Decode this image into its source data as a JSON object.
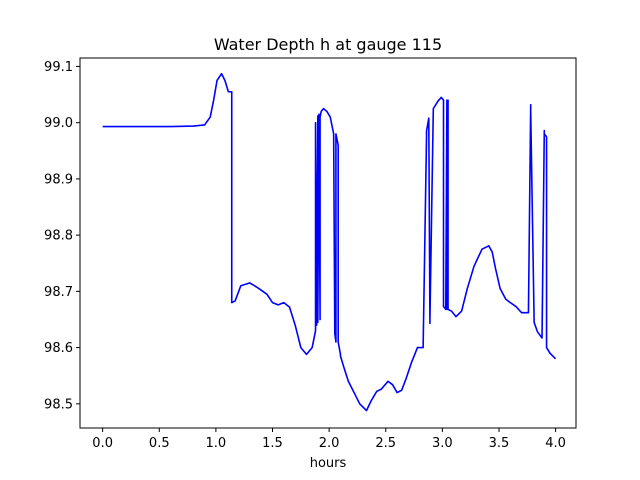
{
  "chart_data": {
    "type": "line",
    "title": "Water Depth h at gauge 115",
    "xlabel": "hours",
    "ylabel": "",
    "xlim": [
      -0.2,
      4.18
    ],
    "ylim": [
      98.457,
      99.115
    ],
    "xticks": [
      0.0,
      0.5,
      1.0,
      1.5,
      2.0,
      2.5,
      3.0,
      3.5,
      4.0
    ],
    "xtick_labels": [
      "0.0",
      "0.5",
      "1.0",
      "1.5",
      "2.0",
      "2.5",
      "3.0",
      "3.5",
      "4.0"
    ],
    "yticks": [
      98.5,
      98.6,
      98.7,
      98.8,
      98.9,
      99.0,
      99.1
    ],
    "ytick_labels": [
      "98.5",
      "98.6",
      "98.7",
      "98.8",
      "98.9",
      "99.0",
      "99.1"
    ],
    "grid": false,
    "series": [
      {
        "color": "#0000ff",
        "x": [
          0.0,
          0.3,
          0.6,
          0.8,
          0.9,
          0.95,
          0.98,
          1.01,
          1.05,
          1.08,
          1.11,
          1.14,
          1.14,
          1.17,
          1.22,
          1.3,
          1.38,
          1.45,
          1.5,
          1.55,
          1.6,
          1.65,
          1.7,
          1.75,
          1.8,
          1.85,
          1.88,
          1.88,
          1.89,
          1.9,
          1.9,
          1.91,
          1.92,
          1.92,
          1.93,
          1.95,
          1.98,
          2.01,
          2.04,
          2.05,
          2.06,
          2.06,
          2.08,
          2.08,
          2.1,
          2.1,
          2.13,
          2.17,
          2.22,
          2.27,
          2.33,
          2.37,
          2.42,
          2.46,
          2.52,
          2.56,
          2.6,
          2.64,
          2.68,
          2.73,
          2.78,
          2.83,
          2.86,
          2.86,
          2.88,
          2.89,
          2.89,
          2.92,
          2.96,
          2.99,
          3.01,
          3.01,
          3.03,
          3.04,
          3.04,
          3.05,
          3.05,
          3.08,
          3.12,
          3.17,
          3.22,
          3.28,
          3.35,
          3.41,
          3.44,
          3.47,
          3.51,
          3.56,
          3.6,
          3.65,
          3.7,
          3.76,
          3.78,
          3.78,
          3.81,
          3.81,
          3.84,
          3.88,
          3.9,
          3.9,
          3.92,
          3.92,
          3.95,
          4.0
        ],
        "y": [
          98.993,
          98.993,
          98.993,
          98.994,
          98.996,
          99.01,
          99.04,
          99.075,
          99.087,
          99.075,
          99.055,
          99.055,
          98.68,
          98.683,
          98.71,
          98.715,
          98.705,
          98.695,
          98.68,
          98.676,
          98.68,
          98.672,
          98.64,
          98.6,
          98.588,
          98.6,
          98.63,
          99.0,
          98.64,
          99.012,
          98.645,
          99.015,
          98.65,
          99.01,
          99.02,
          99.025,
          99.02,
          99.01,
          98.98,
          98.625,
          98.61,
          98.98,
          98.96,
          98.61,
          98.588,
          98.585,
          98.565,
          98.54,
          98.52,
          98.5,
          98.488,
          98.505,
          98.522,
          98.526,
          98.54,
          98.534,
          98.52,
          98.524,
          98.545,
          98.575,
          98.6,
          98.6,
          98.975,
          98.985,
          99.008,
          98.643,
          98.65,
          99.025,
          99.038,
          99.045,
          99.04,
          98.673,
          98.668,
          99.04,
          98.668,
          99.04,
          98.668,
          98.665,
          98.655,
          98.665,
          98.705,
          98.745,
          98.775,
          98.781,
          98.77,
          98.74,
          98.705,
          98.686,
          98.68,
          98.673,
          98.662,
          98.662,
          99.032,
          99.02,
          98.65,
          98.645,
          98.628,
          98.617,
          98.986,
          98.98,
          98.975,
          98.6,
          98.59,
          98.58
        ]
      }
    ]
  }
}
